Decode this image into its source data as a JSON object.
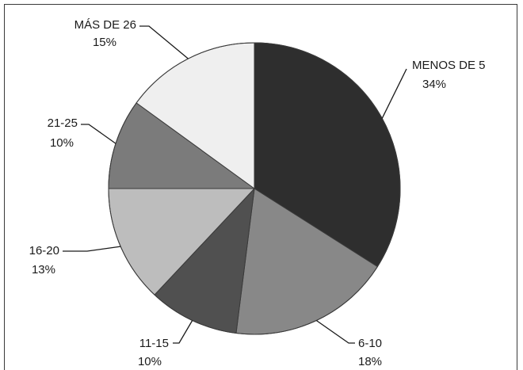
{
  "chart_data": {
    "type": "pie",
    "start_angle_deg": 0,
    "direction": "clockwise",
    "slices": [
      {
        "label": "MENOS DE 5",
        "value": 34,
        "value_text": "34%",
        "color": "#2e2e2e"
      },
      {
        "label": "6-10",
        "value": 18,
        "value_text": "18%",
        "color": "#888888"
      },
      {
        "label": "11-15",
        "value": 10,
        "value_text": "10%",
        "color": "#505050"
      },
      {
        "label": "16-20",
        "value": 13,
        "value_text": "13%",
        "color": "#bdbdbd"
      },
      {
        "label": "21-25",
        "value": 10,
        "value_text": "10%",
        "color": "#7b7b7b"
      },
      {
        "label": "MÁS DE 26",
        "value": 15,
        "value_text": "15%",
        "color": "#efefef"
      }
    ]
  }
}
